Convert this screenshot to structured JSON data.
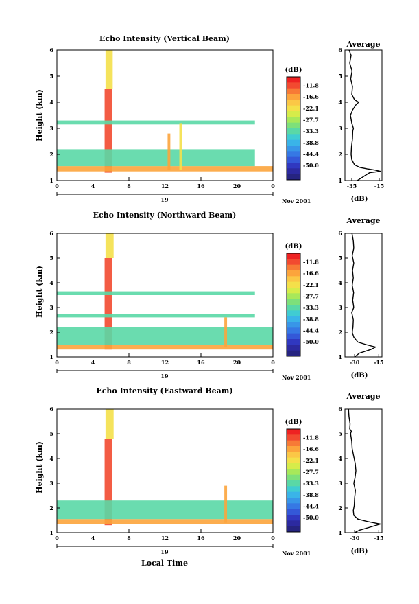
{
  "chart_data": [
    {
      "type": "heatmap",
      "title": "Echo Intensity (Vertical Beam)",
      "ylabel": "Height (km)",
      "xlabel": "",
      "xlim": [
        0,
        24
      ],
      "ylim": [
        1,
        6
      ],
      "x_ticks": [
        "0",
        "4",
        "8",
        "12",
        "16",
        "20",
        "0"
      ],
      "y_ticks": [
        "1",
        "2",
        "3",
        "4",
        "5",
        "6"
      ],
      "date_label": "19",
      "month_label": "Nov 2001",
      "features": [
        {
          "t_start": 5.3,
          "t_end": 6.1,
          "h_bottom": 1.3,
          "h_top": 4.5,
          "level": "-11.8"
        },
        {
          "t_start": 5.4,
          "t_end": 6.2,
          "h_bottom": 4.5,
          "h_top": 6.0,
          "level": "-22.1"
        },
        {
          "t_start": 0.0,
          "t_end": 24.0,
          "h_bottom": 1.35,
          "h_top": 1.55,
          "level": "-16.6"
        },
        {
          "t_start": 0.0,
          "t_end": 22.0,
          "h_bottom": 1.55,
          "h_top": 2.2,
          "level": "-33.3"
        },
        {
          "t_start": 0.0,
          "t_end": 22.0,
          "h_bottom": 3.15,
          "h_top": 3.3,
          "level": "-33.3"
        },
        {
          "t_start": 12.3,
          "t_end": 12.6,
          "h_bottom": 1.4,
          "h_top": 2.8,
          "level": "-16.6"
        },
        {
          "t_start": 13.6,
          "t_end": 13.9,
          "h_bottom": 1.4,
          "h_top": 3.2,
          "level": "-22.1"
        }
      ]
    },
    {
      "type": "heatmap",
      "title": "Echo Intensity (Northward Beam)",
      "ylabel": "Height (km)",
      "xlabel": "",
      "xlim": [
        0,
        24
      ],
      "ylim": [
        1,
        6
      ],
      "x_ticks": [
        "0",
        "4",
        "8",
        "12",
        "16",
        "20",
        "0"
      ],
      "y_ticks": [
        "1",
        "2",
        "3",
        "4",
        "5",
        "6"
      ],
      "date_label": "19",
      "month_label": "Nov 2001",
      "features": [
        {
          "t_start": 5.3,
          "t_end": 6.1,
          "h_bottom": 1.3,
          "h_top": 5.0,
          "level": "-11.8"
        },
        {
          "t_start": 5.4,
          "t_end": 6.3,
          "h_bottom": 5.0,
          "h_top": 6.0,
          "level": "-22.1"
        },
        {
          "t_start": 0.0,
          "t_end": 24.0,
          "h_bottom": 1.3,
          "h_top": 1.5,
          "level": "-16.6"
        },
        {
          "t_start": 0.0,
          "t_end": 24.0,
          "h_bottom": 1.5,
          "h_top": 2.2,
          "level": "-33.3"
        },
        {
          "t_start": 0.0,
          "t_end": 22.0,
          "h_bottom": 2.6,
          "h_top": 2.75,
          "level": "-33.3"
        },
        {
          "t_start": 0.0,
          "t_end": 22.0,
          "h_bottom": 3.5,
          "h_top": 3.65,
          "level": "-33.3"
        },
        {
          "t_start": 18.6,
          "t_end": 18.9,
          "h_bottom": 1.4,
          "h_top": 2.6,
          "level": "-16.6"
        }
      ]
    },
    {
      "type": "heatmap",
      "title": "Echo Intensity (Eastward Beam)",
      "ylabel": "Height (km)",
      "xlabel": "Local Time",
      "xlim": [
        0,
        24
      ],
      "ylim": [
        1,
        6
      ],
      "x_ticks": [
        "0",
        "4",
        "8",
        "12",
        "16",
        "20",
        "0"
      ],
      "y_ticks": [
        "1",
        "2",
        "3",
        "4",
        "5",
        "6"
      ],
      "date_label": "19",
      "month_label": "Nov 2001",
      "features": [
        {
          "t_start": 5.3,
          "t_end": 6.1,
          "h_bottom": 1.3,
          "h_top": 4.8,
          "level": "-11.8"
        },
        {
          "t_start": 5.4,
          "t_end": 6.3,
          "h_bottom": 4.8,
          "h_top": 6.0,
          "level": "-22.1"
        },
        {
          "t_start": 0.0,
          "t_end": 24.0,
          "h_bottom": 1.35,
          "h_top": 1.55,
          "level": "-16.6"
        },
        {
          "t_start": 0.0,
          "t_end": 24.0,
          "h_bottom": 1.55,
          "h_top": 2.3,
          "level": "-33.3"
        },
        {
          "t_start": 18.6,
          "t_end": 18.9,
          "h_bottom": 1.4,
          "h_top": 2.9,
          "level": "-16.6"
        }
      ]
    }
  ],
  "colorbar": {
    "unit": "(dB)",
    "labels": [
      "-11.8",
      "-16.6",
      "-22.1",
      "-27.7",
      "-33.3",
      "-38.8",
      "-44.4",
      "-50.0"
    ],
    "colors": [
      "#ee2222",
      "#f24a30",
      "#f77a36",
      "#fca43c",
      "#fbc746",
      "#f4e04a",
      "#d6ec4a",
      "#a8e85a",
      "#7ee07a",
      "#5ad8a6",
      "#40ccd2",
      "#3ab4e8",
      "#3896e8",
      "#3678e4",
      "#3458d8",
      "#3038c0",
      "#2c2aa0",
      "#262480"
    ]
  },
  "averages": [
    {
      "title": "Average",
      "xlabel": "(dB)",
      "x_ticks": [
        "-35",
        "-15"
      ],
      "y_ticks": [
        "1",
        "2",
        "3",
        "4",
        "5",
        "6"
      ],
      "xlim": [
        -40,
        -13
      ],
      "ylim": [
        1,
        6
      ],
      "profile": {
        "h": [
          1.0,
          1.1,
          1.2,
          1.3,
          1.35,
          1.4,
          1.45,
          1.5,
          1.6,
          1.8,
          2.0,
          2.3,
          2.6,
          2.9,
          3.0,
          3.2,
          3.5,
          3.7,
          3.9,
          4.0,
          4.1,
          4.3,
          4.6,
          4.9,
          5.2,
          5.5,
          5.8,
          6.0
        ],
        "db": [
          -31,
          -28,
          -25,
          -22,
          -14,
          -18,
          -24,
          -29,
          -33,
          -35,
          -35.5,
          -35.2,
          -34.5,
          -34.3,
          -33.8,
          -35,
          -36,
          -34.5,
          -32,
          -30,
          -33,
          -35,
          -34.5,
          -35.8,
          -34.8,
          -36.5,
          -35.5,
          -37
        ]
      }
    },
    {
      "title": "Average",
      "xlabel": "(dB)",
      "x_ticks": [
        "-30",
        "-15"
      ],
      "y_ticks": [
        "1",
        "2",
        "3",
        "4",
        "5",
        "6"
      ],
      "xlim": [
        -36,
        -13
      ],
      "ylim": [
        1,
        6
      ],
      "profile": {
        "h": [
          1.0,
          1.15,
          1.3,
          1.4,
          1.5,
          1.6,
          1.8,
          2.0,
          2.2,
          2.5,
          2.8,
          3.0,
          3.3,
          3.6,
          3.9,
          4.2,
          4.5,
          4.8,
          5.1,
          5.4,
          5.7,
          6.0
        ],
        "db": [
          -30,
          -27,
          -20,
          -17,
          -23,
          -28,
          -30.5,
          -31.5,
          -31,
          -30.8,
          -31.8,
          -30.5,
          -31.2,
          -30.6,
          -31.5,
          -30.8,
          -31.3,
          -30.5,
          -31.5,
          -30.5,
          -30.8,
          -31.6
        ]
      }
    },
    {
      "title": "Average",
      "xlabel": "(dB)",
      "x_ticks": [
        "-30",
        "-15"
      ],
      "y_ticks": [
        "1",
        "2",
        "3",
        "4",
        "5",
        "6"
      ],
      "xlim": [
        -36,
        -13
      ],
      "ylim": [
        1,
        6
      ],
      "profile": {
        "h": [
          1.0,
          1.1,
          1.25,
          1.35,
          1.45,
          1.55,
          1.7,
          1.9,
          2.1,
          2.4,
          2.7,
          3.0,
          3.2,
          3.5,
          3.8,
          4.1,
          4.4,
          4.7,
          5.0,
          5.1,
          5.2,
          5.4,
          5.7,
          6.0
        ],
        "db": [
          -30,
          -27,
          -19,
          -14,
          -22,
          -28,
          -30.5,
          -30.8,
          -30.2,
          -30,
          -29.5,
          -30.5,
          -29.8,
          -29.2,
          -29.6,
          -30.6,
          -31.5,
          -31.8,
          -32.5,
          -32,
          -33,
          -32.8,
          -33.5,
          -33.8
        ]
      }
    }
  ]
}
